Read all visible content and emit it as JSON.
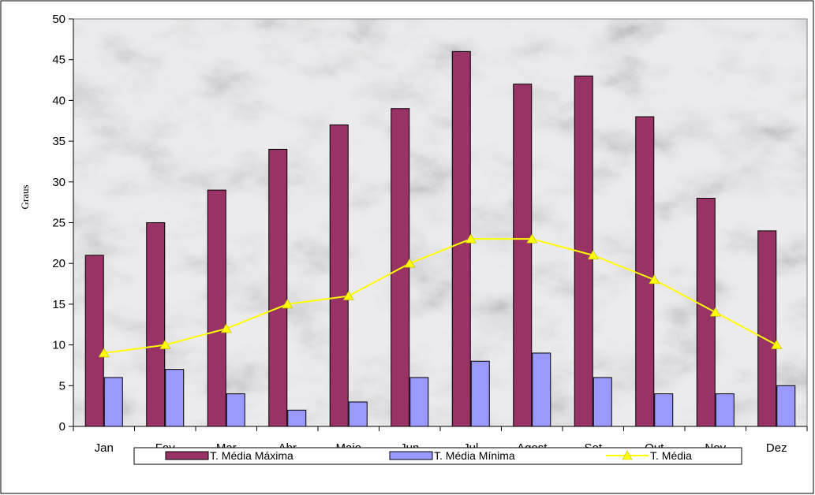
{
  "chart_data": {
    "type": "bar",
    "categories": [
      "Jan",
      "Fev",
      "Mar",
      "Abr",
      "Maio",
      "Jun",
      "Jul",
      "Agost",
      "Set",
      "Out",
      "Nov",
      "Dez"
    ],
    "series": [
      {
        "name": "T. Média Máxima",
        "kind": "bar",
        "color": "#993366",
        "values": [
          21,
          25,
          29,
          34,
          37,
          39,
          46,
          42,
          43,
          38,
          28,
          24
        ]
      },
      {
        "name": "T. Média Mínima",
        "kind": "bar",
        "color": "#9999ff",
        "values": [
          6,
          7,
          4,
          2,
          3,
          6,
          8,
          9,
          6,
          4,
          4,
          5
        ]
      },
      {
        "name": "T. Média",
        "kind": "line",
        "color": "#ffff00",
        "values": [
          9,
          10,
          12,
          15,
          16,
          20,
          23,
          23,
          21,
          18,
          14,
          10
        ]
      }
    ],
    "ylabel": "Graus",
    "ylim": [
      0,
      50
    ],
    "yticks": [
      0,
      5,
      10,
      15,
      20,
      25,
      30,
      35,
      40,
      45,
      50
    ],
    "legend_position": "bottom",
    "grid": false,
    "background": "marble"
  }
}
